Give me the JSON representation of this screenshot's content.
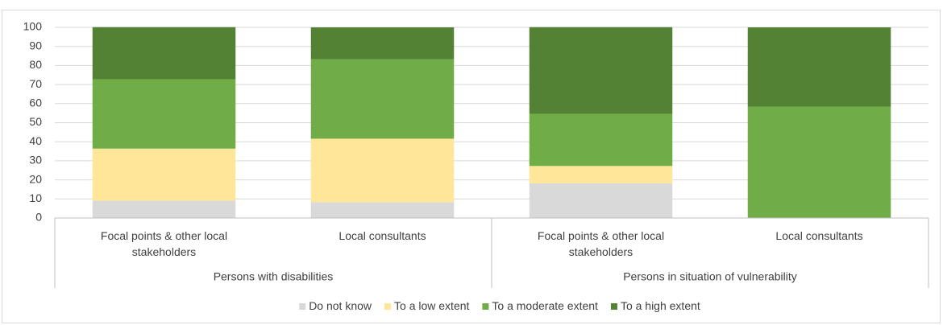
{
  "chart_data": {
    "type": "stacked_bar",
    "categories": [
      "Focal points & other local stakeholders",
      "Local consultants",
      "Focal points & other local stakeholders",
      "Local consultants"
    ],
    "groups": [
      "Persons with disabilities",
      "Persons in situation of vulnerability"
    ],
    "series": [
      {
        "name": "Do not know",
        "color": "#d9d9d9",
        "values": [
          9.1,
          8.3,
          18.2,
          0
        ]
      },
      {
        "name": "To a low extent",
        "color": "#ffe699",
        "values": [
          27.3,
          33.3,
          9.1,
          0
        ]
      },
      {
        "name": "To a moderate extent",
        "color": "#70ad47",
        "values": [
          36.4,
          41.7,
          27.3,
          58.3
        ]
      },
      {
        "name": "To a high extent",
        "color": "#548235",
        "values": [
          27.3,
          16.7,
          45.5,
          41.7
        ]
      }
    ],
    "ylim": [
      0,
      100
    ],
    "yticks": [
      0,
      10,
      20,
      30,
      40,
      50,
      60,
      70,
      80,
      90,
      100
    ],
    "grid": true,
    "legend": "bottom"
  }
}
